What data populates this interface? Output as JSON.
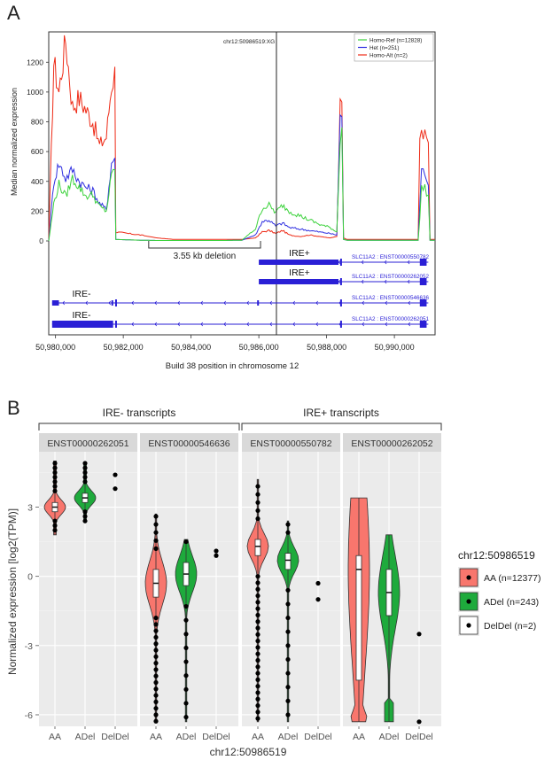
{
  "panelA": {
    "letter": "A",
    "ylabel": "Median normalized expression",
    "xlabel": "Build 38 position in chromosome 12",
    "snp_label": "chr12:50986519:XG",
    "yticks": [
      0,
      200,
      400,
      600,
      800,
      1000,
      1200
    ],
    "xticks": [
      50980000,
      50982000,
      50984000,
      50986000,
      50988000,
      50990000
    ],
    "xtick_labels": [
      "50,980,000",
      "50,982,000",
      "50,984,000",
      "50,986,000",
      "50,988,000",
      "50,990,000"
    ],
    "xlim": [
      50979800,
      50991200
    ],
    "ylim": [
      0,
      1380
    ],
    "snp_position": 50986519,
    "legend": [
      {
        "name": "Homo-Ref (n=12828)",
        "color": "#3cd23c"
      },
      {
        "name": "Het (n=251)",
        "color": "#2f2fe0"
      },
      {
        "name": "Homo-Alt (n=2)",
        "color": "#ee2a16"
      }
    ],
    "deletion": {
      "label": "3.55 kb deletion",
      "start": 50982750,
      "end": 50986050
    },
    "transcripts": [
      {
        "id": "SLC11A2 : ENST00000550782",
        "tag": "IRE+",
        "start": 50986000,
        "end": 50991000
      },
      {
        "id": "SLC11A2 : ENST00000262052",
        "tag": "IRE+",
        "start": 50986000,
        "end": 50991000
      },
      {
        "id": "SLC11A2 : ENST00000546636",
        "tag": "IRE-",
        "start": 50979900,
        "end": 50991000
      },
      {
        "id": "SLC11A2 : ENST00000262051",
        "tag": "IRE-",
        "start": 50979900,
        "end": 50991000
      }
    ]
  },
  "panelB": {
    "letter": "B",
    "ylabel": "Normalized expression [log2(TPM)]",
    "xlabel": "chr12:50986519",
    "groups": [
      "IRE- transcripts",
      "IRE+ transcripts"
    ],
    "facets": [
      "ENST00000262051",
      "ENST00000546636",
      "ENST00000550782",
      "ENST00000262052"
    ],
    "categories": [
      "AA",
      "ADel",
      "DelDel"
    ],
    "yticks": [
      3,
      0,
      -3,
      -6
    ],
    "ylim": [
      -6.5,
      5.4
    ],
    "legend_title": "chr12:50986519",
    "legend": [
      {
        "name": "AA (n=12377)",
        "color": "#f8766d"
      },
      {
        "name": "ADel (n=243)",
        "color": "#1eaa3c"
      },
      {
        "name": "DelDel (n=2)",
        "color": "#ffffff"
      }
    ]
  },
  "chart_data": [
    {
      "type": "line",
      "title": "",
      "xlabel": "Build 38 position in chromosome 12",
      "ylabel": "Median normalized expression",
      "xlim": [
        50979800,
        50991200
      ],
      "ylim": [
        0,
        1380
      ],
      "series": [
        {
          "name": "Homo-Ref (n=12828)",
          "color": "#3cd23c",
          "x": [
            50979800,
            50979950,
            50980100,
            50980300,
            50980500,
            50980700,
            50980900,
            50981100,
            50981300,
            50981500,
            50981650,
            50981750,
            50981780,
            50982500,
            50983000,
            50983500,
            50984000,
            50984500,
            50985000,
            50985500,
            50985900,
            50986100,
            50986300,
            50986500,
            50986700,
            50986900,
            50987200,
            50987500,
            50987800,
            50988100,
            50988300,
            50988400,
            50988450,
            50988500,
            50988600,
            50989000,
            50990000,
            50990700,
            50990750,
            50990800,
            50990900,
            50991000,
            50991050,
            50991200
          ],
          "y": [
            0,
            250,
            380,
            300,
            420,
            360,
            300,
            310,
            230,
            200,
            430,
            500,
            10,
            5,
            3,
            3,
            3,
            3,
            3,
            5,
            80,
            220,
            240,
            190,
            240,
            200,
            170,
            140,
            110,
            90,
            60,
            700,
            780,
            10,
            5,
            5,
            5,
            5,
            150,
            350,
            360,
            300,
            5,
            5
          ]
        },
        {
          "name": "Het (n=251)",
          "color": "#2f2fe0",
          "x": [
            50979800,
            50979950,
            50980100,
            50980300,
            50980500,
            50980700,
            50980900,
            50981100,
            50981300,
            50981500,
            50981650,
            50981750,
            50981780,
            50982500,
            50983000,
            50983500,
            50984000,
            50984500,
            50985000,
            50985500,
            50985900,
            50986100,
            50986300,
            50986500,
            50986700,
            50986900,
            50987200,
            50987500,
            50987800,
            50988100,
            50988300,
            50988400,
            50988450,
            50988500,
            50988600,
            50989000,
            50990000,
            50990700,
            50990750,
            50990800,
            50990900,
            50991000,
            50991050,
            50991200
          ],
          "y": [
            0,
            400,
            520,
            420,
            480,
            400,
            360,
            340,
            250,
            210,
            520,
            560,
            10,
            5,
            3,
            3,
            3,
            3,
            3,
            5,
            40,
            130,
            140,
            100,
            120,
            90,
            80,
            70,
            60,
            50,
            40,
            820,
            860,
            10,
            5,
            5,
            5,
            5,
            250,
            460,
            470,
            400,
            5,
            5
          ]
        },
        {
          "name": "Homo-Alt (n=2)",
          "color": "#ee2a16",
          "x": [
            50979800,
            50979950,
            50980100,
            50980300,
            50980500,
            50980700,
            50980900,
            50981100,
            50981300,
            50981500,
            50981650,
            50981750,
            50981780,
            50982500,
            50983000,
            50983500,
            50984000,
            50984500,
            50985000,
            50985500,
            50985900,
            50986100,
            50986300,
            50986500,
            50986700,
            50986900,
            50987200,
            50987500,
            50987800,
            50988100,
            50988300,
            50988400,
            50988450,
            50988500,
            50988600,
            50989000,
            50990000,
            50990700,
            50990750,
            50990800,
            50990900,
            50991000,
            50991050,
            50991200
          ],
          "y": [
            0,
            1200,
            1000,
            1350,
            900,
            960,
            880,
            800,
            640,
            700,
            1050,
            1130,
            60,
            40,
            20,
            10,
            10,
            10,
            10,
            10,
            20,
            60,
            70,
            50,
            70,
            40,
            30,
            40,
            30,
            20,
            30,
            880,
            900,
            20,
            10,
            10,
            10,
            10,
            700,
            720,
            700,
            650,
            10,
            10
          ]
        }
      ]
    },
    {
      "type": "violin",
      "title": "",
      "xlabel": "chr12:50986519",
      "ylabel": "Normalized expression [log2(TPM)]",
      "categories": [
        "AA",
        "ADel",
        "DelDel"
      ],
      "ylim": [
        -6.5,
        5.4
      ],
      "facets": [
        {
          "name": "ENST00000262051",
          "group": "IRE- transcripts",
          "AA": {
            "median": 3.0,
            "q1": 2.8,
            "q3": 3.2,
            "min": 1.8,
            "max": 5.0
          },
          "ADel": {
            "median": 3.4,
            "q1": 3.2,
            "q3": 3.6,
            "min": 2.4,
            "max": 4.9
          },
          "DelDel": [
            4.4,
            3.8
          ]
        },
        {
          "name": "ENST00000546636",
          "group": "IRE- transcripts",
          "AA": {
            "median": -0.3,
            "q1": -0.9,
            "q3": 0.3,
            "min": -6.3,
            "max": 2.7
          },
          "ADel": {
            "median": 0.1,
            "q1": -0.4,
            "q3": 0.6,
            "min": -6.3,
            "max": 1.6
          },
          "DelDel": [
            1.1,
            0.9
          ]
        },
        {
          "name": "ENST00000550782",
          "group": "IRE+ transcripts",
          "AA": {
            "median": 1.3,
            "q1": 0.9,
            "q3": 1.6,
            "min": -6.3,
            "max": 4.2
          },
          "ADel": {
            "median": 0.7,
            "q1": 0.3,
            "q3": 1.0,
            "min": -6.3,
            "max": 2.4
          },
          "DelDel": [
            -0.3,
            -1.0
          ]
        },
        {
          "name": "ENST00000262052",
          "group": "IRE+ transcripts",
          "AA": {
            "median": 0.3,
            "q1": -4.5,
            "q3": 0.9,
            "min": -6.3,
            "max": 3.4
          },
          "ADel": {
            "median": -0.7,
            "q1": -1.7,
            "q3": 0.3,
            "min": -6.3,
            "max": 1.8
          },
          "DelDel": [
            -2.5,
            -6.3
          ]
        }
      ]
    }
  ]
}
